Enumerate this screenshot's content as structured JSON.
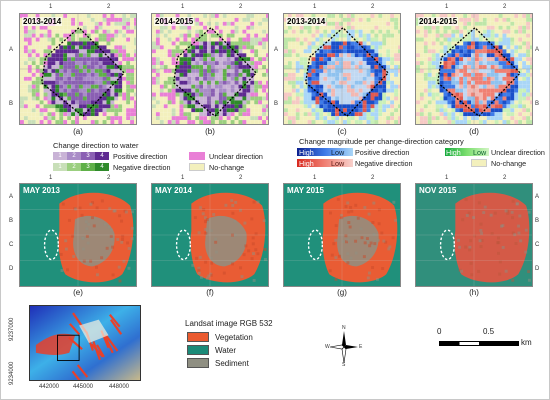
{
  "top_row": {
    "panels": [
      {
        "title": "2013-2014",
        "caption": "(a)"
      },
      {
        "title": "2014-2015",
        "caption": "(b)"
      },
      {
        "title": "2013-2014",
        "caption": "(c)"
      },
      {
        "title": "2014-2015",
        "caption": "(d)"
      }
    ],
    "col_ticks": [
      "1",
      "2"
    ],
    "row_ticks": [
      "A",
      "B"
    ]
  },
  "legend_direction": {
    "title": "Change direction to water",
    "positive_nums": [
      "1",
      "2",
      "3",
      "4"
    ],
    "negative_nums": [
      "1",
      "2",
      "3",
      "4"
    ],
    "positive_label": "Positive direction",
    "negative_label": "Negative direction",
    "unclear_label": "Unclear direction",
    "nochange_label": "No-change",
    "positive_colors": [
      "#c9b3d6",
      "#a98cc7",
      "#8a5fb3",
      "#5e2a91"
    ],
    "negative_colors": [
      "#c8dfb8",
      "#9bcf7f",
      "#5fb048",
      "#2f8a2a"
    ],
    "unclear_color": "#e97fd6",
    "nochange_color": "#f3f0bd"
  },
  "legend_magnitude": {
    "title": "Change magnitude per change-direction category",
    "positive": {
      "high": "High",
      "low": "Low",
      "label": "Positive direction"
    },
    "negative": {
      "high": "High",
      "low": "Low",
      "label": "Negative direction"
    },
    "unclear": {
      "high": "High",
      "low": "Low",
      "label": "Unclear direction"
    },
    "nochange_label": "No-change"
  },
  "bottom_row": {
    "panels": [
      {
        "title": "MAY 2013",
        "caption": "(e)"
      },
      {
        "title": "MAY 2014",
        "caption": "(f)"
      },
      {
        "title": "MAY 2015",
        "caption": "(g)"
      },
      {
        "title": "NOV 2015",
        "caption": "(h)"
      }
    ],
    "col_ticks": [
      "1",
      "2"
    ],
    "row_ticks": [
      "A",
      "B",
      "C",
      "D"
    ]
  },
  "inset": {
    "y_ticks": [
      "9237000",
      "9234000"
    ],
    "x_ticks": [
      "442000",
      "445000",
      "448000"
    ]
  },
  "legend_rgb": {
    "title": "Landsat image RGB 532",
    "items": [
      {
        "label": "Vegetation",
        "color": "#ea5a2f"
      },
      {
        "label": "Water",
        "color": "#1b8a78"
      },
      {
        "label": "Sediment",
        "color": "#8f8f82"
      }
    ]
  },
  "compass": {
    "n": "N",
    "s": "S",
    "e": "E",
    "w": "W"
  },
  "scalebar": {
    "labels": [
      "0",
      "0.5"
    ],
    "unit": "km"
  }
}
